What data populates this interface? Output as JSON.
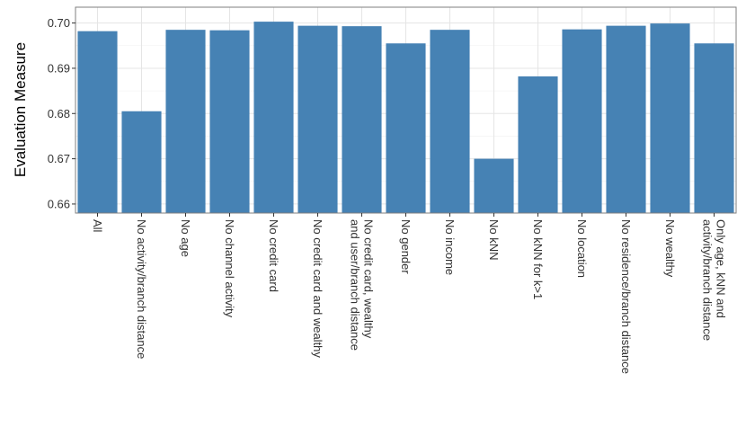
{
  "chart_data": {
    "type": "bar",
    "title": "",
    "xlabel": "",
    "ylabel": "Evaluation Measure",
    "ylim": [
      0.658,
      0.7035
    ],
    "yticks": [
      "0.66",
      "0.67",
      "0.68",
      "0.69",
      "0.70"
    ],
    "grid": true,
    "bar_color": "#4682B4",
    "categories": [
      "All",
      "No activity/branch distance",
      "No age",
      "No channel activity",
      "No credit card",
      "No credit card and wealthy",
      "No credit card, wealthy\nand user/branch distance",
      "No gender",
      "No income",
      "No kNN",
      "No kNN for k>1",
      "No location",
      "No residence/branch distance",
      "No wealthy",
      "Only age, kNN and\nactivity/branch distance"
    ],
    "values": [
      0.6982,
      0.6805,
      0.6985,
      0.6984,
      0.7003,
      0.6994,
      0.6993,
      0.6955,
      0.6985,
      0.67,
      0.6882,
      0.6986,
      0.6994,
      0.6999,
      0.6955
    ]
  }
}
